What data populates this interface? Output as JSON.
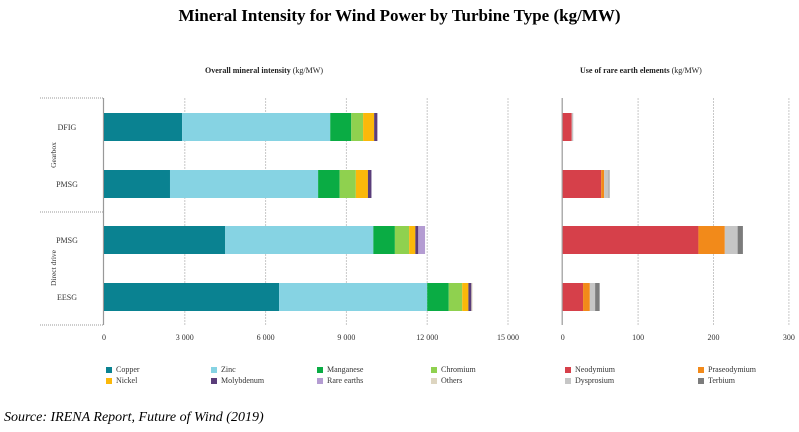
{
  "title": "Mineral Intensity for Wind Power by Turbine Type (kg/MW)",
  "source": "Source: IRENA Report, Future of Wind (2019)",
  "chart_data": [
    {
      "type": "bar",
      "orientation": "horizontal",
      "stacked": true,
      "title_bold": "Overall mineral intensity",
      "title_unit": " (kg/MW)",
      "groups": [
        {
          "label": "Gearbox",
          "categories": [
            "DFIG",
            "PMSG"
          ]
        },
        {
          "label": "Direct drive",
          "categories": [
            "PMSG",
            "EESG"
          ]
        }
      ],
      "categories": [
        "DFIG",
        "PMSG",
        "PMSG",
        "EESG"
      ],
      "xlim": [
        0,
        17000
      ],
      "xticks": [
        0,
        3000,
        6000,
        9000,
        12000,
        15000
      ],
      "xtick_labels": [
        "0",
        "3 000",
        "6 000",
        "9 000",
        "12 000",
        "15 000"
      ],
      "grid": true,
      "series": [
        {
          "name": "Copper",
          "color": "#0a8291",
          "values": [
            2900,
            2450,
            4500,
            6500
          ]
        },
        {
          "name": "Zinc",
          "color": "#86d3e3",
          "values": [
            5500,
            5500,
            5500,
            5500
          ]
        },
        {
          "name": "Manganese",
          "color": "#0aac44",
          "values": [
            780,
            800,
            800,
            800
          ]
        },
        {
          "name": "Chromium",
          "color": "#8fd14f",
          "values": [
            440,
            600,
            530,
            500
          ]
        },
        {
          "name": "Nickel",
          "color": "#fbb80a",
          "values": [
            410,
            450,
            230,
            230
          ]
        },
        {
          "name": "Molybdenum",
          "color": "#5a3d7a",
          "values": [
            120,
            130,
            110,
            110
          ]
        },
        {
          "name": "Rare earths",
          "color": "#b49cd2",
          "values": [
            0,
            0,
            250,
            0
          ]
        },
        {
          "name": "Others",
          "color": "#ddd5c0",
          "values": [
            0,
            0,
            0,
            40
          ]
        }
      ]
    },
    {
      "type": "bar",
      "orientation": "horizontal",
      "stacked": true,
      "title_bold": "Use of rare earth elements",
      "title_unit": " (kg/MW)",
      "categories": [
        "DFIG",
        "PMSG",
        "PMSG",
        "EESG"
      ],
      "xlim": [
        0,
        300
      ],
      "xticks": [
        0,
        100,
        200,
        300
      ],
      "xtick_labels": [
        "0",
        "100",
        "200",
        "300"
      ],
      "grid": true,
      "series": [
        {
          "name": "Neodymium",
          "color": "#d6404a",
          "values": [
            12,
            51,
            180,
            27
          ]
        },
        {
          "name": "Praseodymium",
          "color": "#f28a1a",
          "values": [
            0,
            4,
            35,
            9
          ]
        },
        {
          "name": "Dysprosium",
          "color": "#c6c6c6",
          "values": [
            2,
            6,
            17,
            7
          ]
        },
        {
          "name": "Terbium",
          "color": "#7c7c7c",
          "values": [
            0,
            1,
            7,
            6
          ]
        }
      ]
    }
  ]
}
